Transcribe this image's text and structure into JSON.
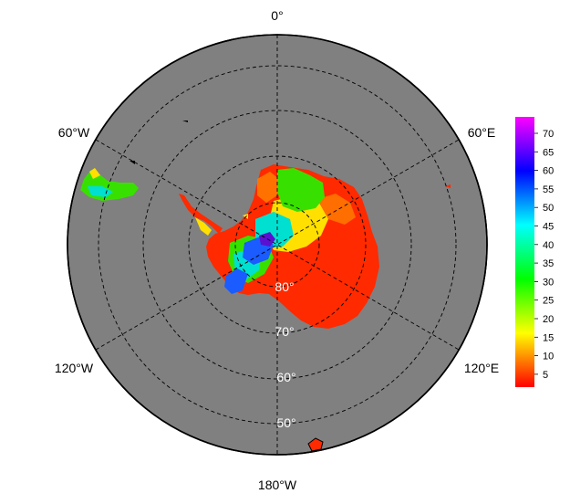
{
  "map": {
    "projection": "south-polar-stereographic",
    "ocean_color": "#808080",
    "grid_style": "dashed",
    "longitude_labels": {
      "top": "0°",
      "top_right": "60°E",
      "bottom_right": "120°E",
      "bottom": "180°W",
      "bottom_left": "120°W",
      "top_left": "60°W"
    },
    "latitude_labels": [
      "80°",
      "70°",
      "60°",
      "50°"
    ]
  },
  "colorbar": {
    "ticks": [
      "70",
      "65",
      "60",
      "55",
      "50",
      "45",
      "40",
      "35",
      "30",
      "25",
      "20",
      "15",
      "10",
      "5"
    ],
    "colors_top_to_bottom": [
      "#ff00ff",
      "#8000ff",
      "#0000ff",
      "#0080ff",
      "#00ffff",
      "#00ff80",
      "#00ff00",
      "#80ff00",
      "#ffff00",
      "#ff8000",
      "#ff0000"
    ]
  },
  "colors": {
    "low": "#ff2a00",
    "orange": "#ff7a00",
    "yellow": "#ffe000",
    "green": "#38e000",
    "cyan": "#00e0d0",
    "blue": "#1a5cff",
    "purple": "#5a10d0"
  }
}
